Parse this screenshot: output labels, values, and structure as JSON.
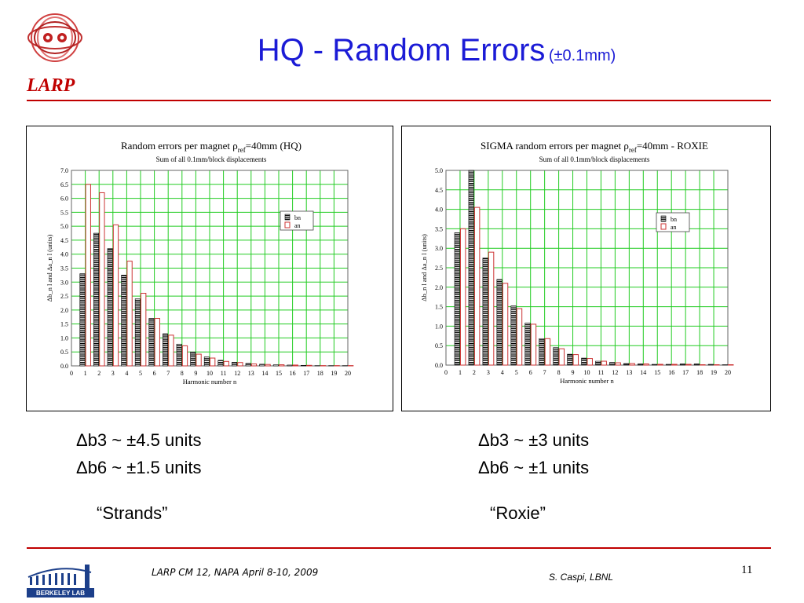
{
  "slide": {
    "title": "HQ - Random Errors",
    "title_suffix": "(±0.1mm)",
    "org": "LARP",
    "left_stats": [
      "Δb3 ~ ±4.5 units",
      "Δb6 ~ ±1.5 units"
    ],
    "right_stats": [
      "Δb3 ~ ±3 units",
      "Δb6 ~ ±1 units"
    ],
    "left_caption": "“Strands”",
    "right_caption": "“Roxie”",
    "footer_event": "LARP CM 12,  NAPA April 8-10, 2009",
    "footer_author": "S. Caspi, LBNL",
    "page_number": "11",
    "berkeley_logo_text": "BERKELEY LAB"
  },
  "colors": {
    "title": "#1b1bd6",
    "rule": "#c00000",
    "grid": "#22cc22",
    "an": "#cc3333",
    "bn": "#000000"
  },
  "chart_data": [
    {
      "type": "bar",
      "title_main": "Random errors per magnet ρ",
      "title_sub": "ref",
      "title_rest": "=40mm (HQ)",
      "subtitle": "Sum of all 0.1mm/block displacements",
      "xlabel": "Harmonic number n",
      "ylabel": "Δb_n l and Δa_n l (units)",
      "xlim": [
        0,
        20
      ],
      "ylim": [
        0,
        7.0
      ],
      "ytick_step": 0.5,
      "grid": true,
      "legend_position": "right",
      "categories": [
        1,
        2,
        3,
        4,
        5,
        6,
        7,
        8,
        9,
        10,
        11,
        12,
        13,
        14,
        15,
        16,
        17,
        18,
        19,
        20
      ],
      "series": [
        {
          "name": "bn",
          "values": [
            3.3,
            4.75,
            4.2,
            3.25,
            2.4,
            1.7,
            1.15,
            0.78,
            0.5,
            0.32,
            0.2,
            0.13,
            0.09,
            0.06,
            0.04,
            0.03,
            0.02,
            0.01,
            0.01,
            0.01
          ]
        },
        {
          "name": "an",
          "values": [
            6.5,
            6.2,
            5.05,
            3.75,
            2.6,
            1.7,
            1.1,
            0.72,
            0.42,
            0.28,
            0.16,
            0.12,
            0.07,
            0.05,
            0.04,
            0.03,
            0.02,
            0.01,
            0.01,
            0.01
          ]
        }
      ]
    },
    {
      "type": "bar",
      "title_main": "SIGMA random errors per magnet ρ",
      "title_sub": "ref",
      "title_rest": "=40mm - ROXIE",
      "subtitle": "Sum of all 0.1mm/block displacements",
      "xlabel": "Harmonic number n",
      "ylabel": "Δb_n l and Δa_n l (units)",
      "xlim": [
        0,
        20
      ],
      "ylim": [
        0,
        5.0
      ],
      "ytick_step": 0.5,
      "grid": true,
      "legend_position": "right",
      "categories": [
        1,
        2,
        3,
        4,
        5,
        6,
        7,
        8,
        9,
        10,
        11,
        12,
        13,
        14,
        15,
        16,
        17,
        18,
        19,
        20
      ],
      "series": [
        {
          "name": "bn",
          "values": [
            3.4,
            5.0,
            2.75,
            2.2,
            1.52,
            1.08,
            0.68,
            0.45,
            0.28,
            0.18,
            0.1,
            0.07,
            0.04,
            0.03,
            0.02,
            0.02,
            0.03,
            0.03,
            0.02,
            0.01
          ]
        },
        {
          "name": "an",
          "values": [
            3.5,
            4.05,
            2.9,
            2.1,
            1.45,
            1.05,
            0.68,
            0.42,
            0.27,
            0.17,
            0.1,
            0.06,
            0.04,
            0.03,
            0.02,
            0.02,
            0.02,
            0.01,
            0.01,
            0.01
          ]
        }
      ]
    }
  ]
}
